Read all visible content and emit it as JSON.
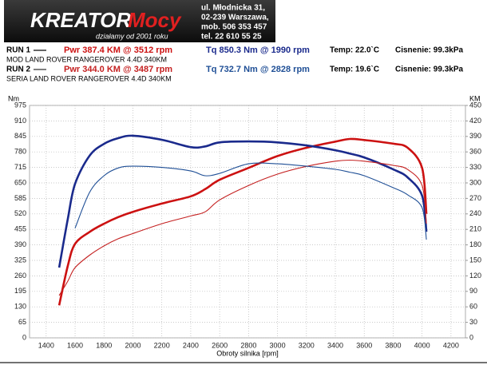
{
  "header": {
    "logo_main": "KREATOR",
    "logo_accent": "Mocy",
    "slogan": "działamy od 2001 roku",
    "address": [
      "ul. Młodnicka 31,",
      "02-239  Warszawa,",
      "mob.  506 353 457",
      "tel.  22 610 55 25"
    ]
  },
  "runs": [
    {
      "label": "RUN 1",
      "description": "MOD LAND ROVER RANGEROVER 4.4D 340KM",
      "temp": "Temp: 22.0`C",
      "pressure": "Cisnenie: 99.3kPa"
    },
    {
      "label": "RUN 2",
      "description": "SERIA LAND ROVER RANGEROVER 4.4D 340KM",
      "temp": "Temp: 19.6`C",
      "pressure": "Cisnenie: 99.3kPa"
    }
  ],
  "chart_data": {
    "type": "line",
    "ylabel": "Nm",
    "y2label": "KM",
    "xlabel": "Obroty silnika [rpm]",
    "x": [
      1490,
      1550,
      1600,
      1700,
      1800,
      1900,
      2000,
      2200,
      2400,
      2500,
      2600,
      2800,
      3000,
      3200,
      3400,
      3500,
      3600,
      3800,
      3900,
      4000,
      4030
    ],
    "series": [
      {
        "name": "Pwr  387.4 KM @ 3512 rpm",
        "color": "#cc1111",
        "width": 2.6,
        "axis": "y2",
        "values": [
          63,
          140,
          182,
          205,
          221,
          234,
          244,
          260,
          274,
          288,
          306,
          329,
          352,
          368,
          380,
          385,
          383,
          376,
          368,
          329,
          240
        ]
      },
      {
        "name": "Tq 850.3 Nm @ 1990 rpm",
        "color": "#1a2a8c",
        "width": 2.6,
        "values": [
          295,
          500,
          646,
          764,
          814,
          838,
          848,
          831,
          800,
          803,
          820,
          824,
          820,
          807,
          787,
          773,
          757,
          707,
          673,
          596,
          445
        ]
      },
      {
        "name": "Pwr  344.0 KM @ 3487 rpm",
        "color": "#c42020",
        "width": 1.1,
        "axis": "y2",
        "values": [
          82,
          110,
          136,
          160,
          178,
          192,
          202,
          221,
          236,
          244,
          267,
          295,
          317,
          332,
          342,
          344,
          342,
          334,
          326,
          295,
          221
        ]
      },
      {
        "name": "Tq 732.7 Nm @ 2828 rpm",
        "color": "#1f4f96",
        "width": 1.1,
        "values": [
          null,
          null,
          460,
          610,
          680,
          713,
          720,
          715,
          700,
          680,
          690,
          730,
          730,
          720,
          707,
          695,
          680,
          630,
          600,
          546,
          412
        ]
      }
    ],
    "xlim": [
      1285,
      4300
    ],
    "xticks": [
      1400,
      1600,
      1800,
      2000,
      2200,
      2400,
      2600,
      2800,
      3000,
      3200,
      3400,
      3600,
      3800,
      4000,
      4200
    ],
    "ylim": [
      0,
      975
    ],
    "yticks": [
      0,
      65,
      130,
      195,
      260,
      325,
      390,
      455,
      520,
      585,
      650,
      715,
      780,
      845,
      910,
      975
    ],
    "y2lim": [
      0,
      450
    ],
    "y2ticks": [
      0,
      30,
      60,
      90,
      120,
      150,
      180,
      210,
      240,
      270,
      300,
      330,
      360,
      390,
      420,
      450
    ],
    "grid": true
  }
}
